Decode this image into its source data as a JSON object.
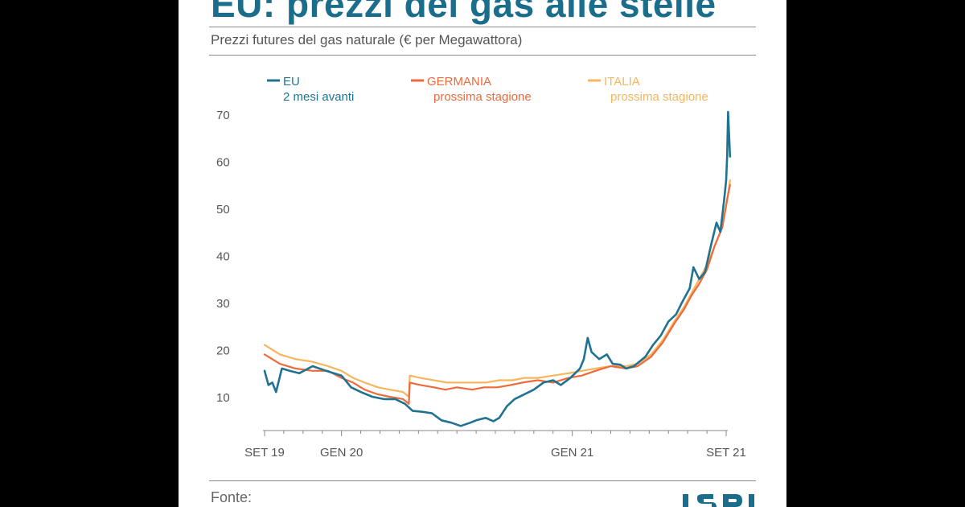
{
  "title": "EU: prezzi del gas alle stelle",
  "subtitle": "Prezzi futures del gas naturale (€ per Megawattora)",
  "footer": {
    "source_label": "Fonte:"
  },
  "colors": {
    "title": "#1a6e8c",
    "eu": "#1f7391",
    "germania": "#ee6a3a",
    "italia": "#f7b55c",
    "axis": "#888888"
  },
  "chart_data": {
    "type": "line",
    "x_tick_labels": [
      "SET 19",
      "GEN 20",
      "GEN 21",
      "SET 21"
    ],
    "x_tick_positions": [
      0,
      4,
      16,
      24
    ],
    "ylim": [
      3,
      71
    ],
    "y_ticks": [
      10,
      20,
      30,
      40,
      50,
      60,
      70
    ],
    "legend_position": "top",
    "series": [
      {
        "name": "EU",
        "name_line2": "2 mesi avanti",
        "key": "eu",
        "color": "#1f7391",
        "points": [
          [
            0,
            15.5
          ],
          [
            0.2,
            12.5
          ],
          [
            0.4,
            13
          ],
          [
            0.6,
            11
          ],
          [
            0.9,
            16
          ],
          [
            1.3,
            15.5
          ],
          [
            1.8,
            15
          ],
          [
            2.5,
            16.5
          ],
          [
            3.2,
            15.5
          ],
          [
            4,
            14.5
          ],
          [
            4.5,
            12
          ],
          [
            5,
            11
          ],
          [
            5.6,
            10
          ],
          [
            6.2,
            9.5
          ],
          [
            6.8,
            9.5
          ],
          [
            7.3,
            8.5
          ],
          [
            7.7,
            7
          ],
          [
            8.2,
            6.8
          ],
          [
            8.7,
            6.5
          ],
          [
            9.2,
            5
          ],
          [
            9.7,
            4.5
          ],
          [
            10.2,
            3.8
          ],
          [
            10.7,
            4.5
          ],
          [
            11,
            5
          ],
          [
            11.5,
            5.5
          ],
          [
            11.9,
            4.8
          ],
          [
            12.2,
            5.5
          ],
          [
            12.6,
            8
          ],
          [
            13,
            9.5
          ],
          [
            13.5,
            10.5
          ],
          [
            14,
            11.5
          ],
          [
            14.5,
            13
          ],
          [
            15,
            13.5
          ],
          [
            15.4,
            12.5
          ],
          [
            15.9,
            14
          ],
          [
            16.4,
            16
          ],
          [
            16.6,
            18
          ],
          [
            16.8,
            22.5
          ],
          [
            17,
            19.5
          ],
          [
            17.4,
            18
          ],
          [
            17.8,
            19
          ],
          [
            18.1,
            17
          ],
          [
            18.5,
            16.8
          ],
          [
            18.8,
            16
          ],
          [
            19.2,
            16.5
          ],
          [
            19.5,
            17.5
          ],
          [
            19.8,
            18.5
          ],
          [
            20.2,
            21
          ],
          [
            20.6,
            23
          ],
          [
            21,
            26
          ],
          [
            21.4,
            27.5
          ],
          [
            21.7,
            30
          ],
          [
            22.1,
            33
          ],
          [
            22.3,
            37.5
          ],
          [
            22.6,
            35
          ],
          [
            22.9,
            36.5
          ],
          [
            23.2,
            42
          ],
          [
            23.5,
            47
          ],
          [
            23.7,
            45
          ],
          [
            23.9,
            52
          ],
          [
            24,
            56
          ],
          [
            24.05,
            61
          ],
          [
            24.1,
            70.5
          ],
          [
            24.2,
            61
          ]
        ]
      },
      {
        "name": "GERMANIA",
        "name_line2": "prossima stagione",
        "key": "germania",
        "color": "#ee6a3a",
        "points": [
          [
            0,
            19
          ],
          [
            0.8,
            17
          ],
          [
            1.6,
            16
          ],
          [
            2.5,
            15.5
          ],
          [
            3.3,
            15.5
          ],
          [
            4,
            14
          ],
          [
            4.6,
            13
          ],
          [
            5.2,
            11.5
          ],
          [
            5.9,
            10.5
          ],
          [
            6.5,
            10
          ],
          [
            7.2,
            9.5
          ],
          [
            7.5,
            8.5
          ],
          [
            7.55,
            13
          ],
          [
            8.1,
            12.5
          ],
          [
            8.8,
            12
          ],
          [
            9.4,
            11.5
          ],
          [
            10,
            12
          ],
          [
            10.8,
            11.5
          ],
          [
            11.4,
            12
          ],
          [
            12.1,
            12
          ],
          [
            12.8,
            12.5
          ],
          [
            13.4,
            13
          ],
          [
            14.2,
            13.5
          ],
          [
            15,
            13
          ],
          [
            15.8,
            14
          ],
          [
            16.5,
            14.5
          ],
          [
            17.2,
            15.5
          ],
          [
            18,
            16.5
          ],
          [
            18.8,
            16
          ],
          [
            19.4,
            16.5
          ],
          [
            20.1,
            18.5
          ],
          [
            20.7,
            21.5
          ],
          [
            21.3,
            25.5
          ],
          [
            21.8,
            28.5
          ],
          [
            22.2,
            31.5
          ],
          [
            22.6,
            34
          ],
          [
            23,
            37
          ],
          [
            23.4,
            42
          ],
          [
            23.8,
            46
          ],
          [
            24.1,
            53
          ],
          [
            24.2,
            55
          ]
        ]
      },
      {
        "name": "ITALIA",
        "name_line2": "prossima stagione",
        "key": "italia",
        "color": "#f7b55c",
        "points": [
          [
            0,
            21
          ],
          [
            0.8,
            19
          ],
          [
            1.6,
            18
          ],
          [
            2.4,
            17.5
          ],
          [
            3.3,
            16.5
          ],
          [
            4,
            15.5
          ],
          [
            4.6,
            14
          ],
          [
            5.2,
            13
          ],
          [
            5.9,
            12
          ],
          [
            6.5,
            11.5
          ],
          [
            7.2,
            11
          ],
          [
            7.5,
            10
          ],
          [
            7.55,
            14.5
          ],
          [
            8.1,
            14
          ],
          [
            8.8,
            13.5
          ],
          [
            9.5,
            13
          ],
          [
            10.2,
            13
          ],
          [
            10.8,
            13
          ],
          [
            11.5,
            13
          ],
          [
            12.2,
            13.5
          ],
          [
            12.9,
            13.5
          ],
          [
            13.5,
            14
          ],
          [
            14.2,
            14
          ],
          [
            15,
            14.5
          ],
          [
            15.8,
            15
          ],
          [
            16.5,
            15.5
          ],
          [
            17.2,
            16
          ],
          [
            18,
            16.5
          ],
          [
            18.8,
            16.5
          ],
          [
            19.4,
            17
          ],
          [
            20.1,
            19
          ],
          [
            20.7,
            22
          ],
          [
            21.3,
            26
          ],
          [
            21.8,
            29
          ],
          [
            22.2,
            32
          ],
          [
            22.6,
            35
          ],
          [
            23,
            38
          ],
          [
            23.4,
            42
          ],
          [
            23.8,
            46
          ],
          [
            24.1,
            53
          ],
          [
            24.2,
            56
          ]
        ]
      }
    ]
  }
}
